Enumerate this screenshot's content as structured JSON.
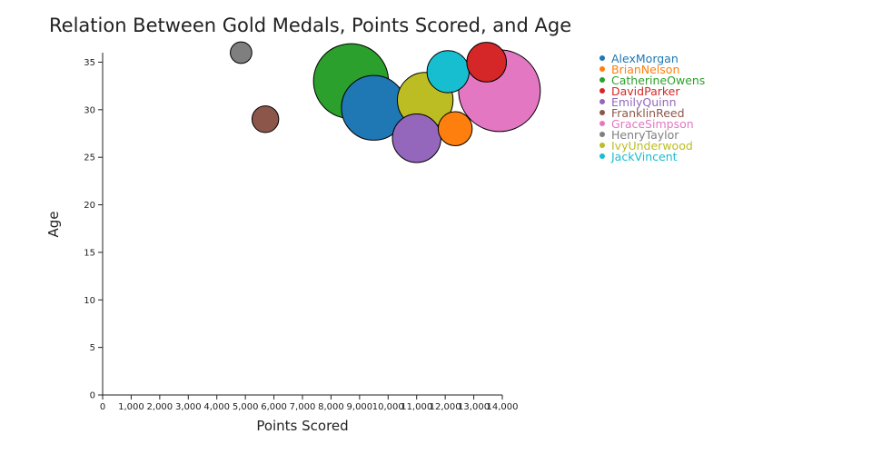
{
  "chart_data": {
    "type": "scatter",
    "title": "Relation Between Gold Medals, Points Scored, and Age",
    "xlabel": "Points Scored",
    "ylabel": "Age",
    "xlim": [
      0,
      14000
    ],
    "ylim": [
      0,
      36
    ],
    "x_ticks": [
      0,
      1000,
      2000,
      3000,
      4000,
      5000,
      6000,
      7000,
      8000,
      9000,
      10000,
      11000,
      12000,
      13000,
      14000
    ],
    "x_tick_labels": [
      "0",
      "1,000",
      "2,000",
      "3,000",
      "4,000",
      "5,000",
      "6,000",
      "7,000",
      "8,000",
      "9,000",
      "10,000",
      "11,000",
      "12,000",
      "13,000",
      "14,000"
    ],
    "y_ticks": [
      0,
      5,
      10,
      15,
      20,
      25,
      30,
      35
    ],
    "y_tick_labels": [
      "0",
      "5",
      "10",
      "15",
      "20",
      "25",
      "30",
      "35"
    ],
    "grid": false,
    "legend_position": "top-right",
    "size_encodes": "Gold Medals",
    "series": [
      {
        "name": "AlexMorgan",
        "color": "#1f77b4",
        "points": [
          {
            "x": 9500,
            "y": 30.2,
            "gold_medals": 10
          }
        ]
      },
      {
        "name": "BrianNelson",
        "color": "#ff7f0e",
        "points": [
          {
            "x": 12350,
            "y": 28,
            "gold_medals": 2
          }
        ]
      },
      {
        "name": "CatherineOwens",
        "color": "#2ca02c",
        "points": [
          {
            "x": 8700,
            "y": 33,
            "gold_medals": 14
          }
        ]
      },
      {
        "name": "DavidParker",
        "color": "#d62728",
        "points": [
          {
            "x": 13450,
            "y": 35,
            "gold_medals": 3
          }
        ]
      },
      {
        "name": "EmilyQuinn",
        "color": "#9467bd",
        "points": [
          {
            "x": 11000,
            "y": 27,
            "gold_medals": 5
          }
        ]
      },
      {
        "name": "FranklinReed",
        "color": "#8c564b",
        "points": [
          {
            "x": 5700,
            "y": 29,
            "gold_medals": 1
          }
        ]
      },
      {
        "name": "GraceSimpson",
        "color": "#e377c2",
        "points": [
          {
            "x": 13900,
            "y": 32,
            "gold_medals": 17
          }
        ]
      },
      {
        "name": "HenryTaylor",
        "color": "#7f7f7f",
        "points": [
          {
            "x": 4850,
            "y": 36,
            "gold_medals": 0.5
          }
        ]
      },
      {
        "name": "IvyUnderwood",
        "color": "#bcbd22",
        "points": [
          {
            "x": 11300,
            "y": 31,
            "gold_medals": 7
          }
        ]
      },
      {
        "name": "JackVincent",
        "color": "#17becf",
        "points": [
          {
            "x": 12100,
            "y": 34,
            "gold_medals": 3.5
          }
        ]
      }
    ]
  }
}
